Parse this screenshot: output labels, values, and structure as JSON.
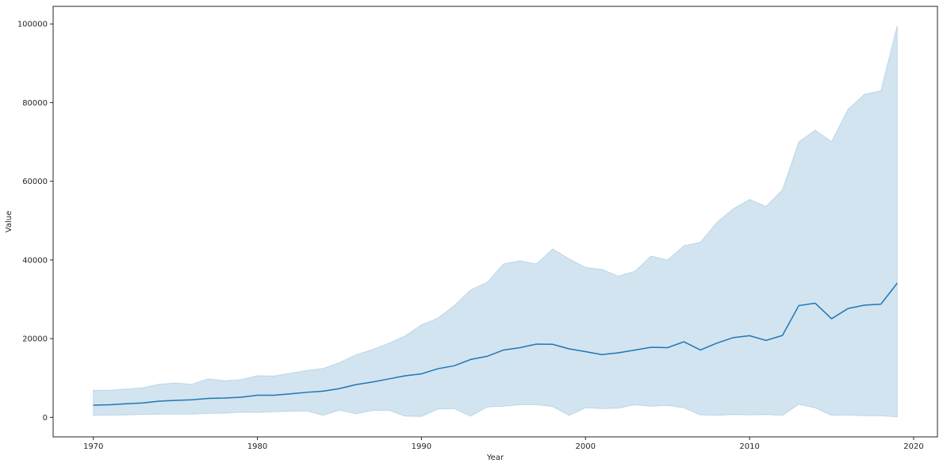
{
  "chart_data": {
    "type": "line",
    "xlabel": "Year",
    "ylabel": "Value",
    "xlim": [
      1967.55,
      2021.45
    ],
    "ylim": [
      -4975,
      104475
    ],
    "x_ticks": [
      1970,
      1980,
      1990,
      2000,
      2010,
      2020
    ],
    "y_ticks": [
      0,
      20000,
      40000,
      60000,
      80000,
      100000
    ],
    "grid": false,
    "colors": {
      "line": "#1f77b4",
      "band": "#1f77b4"
    },
    "x": [
      1970,
      1971,
      1972,
      1973,
      1974,
      1975,
      1976,
      1977,
      1978,
      1979,
      1980,
      1981,
      1982,
      1983,
      1984,
      1985,
      1986,
      1987,
      1988,
      1989,
      1990,
      1991,
      1992,
      1993,
      1994,
      1995,
      1996,
      1997,
      1998,
      1999,
      2000,
      2001,
      2002,
      2003,
      2004,
      2005,
      2006,
      2007,
      2008,
      2009,
      2010,
      2011,
      2012,
      2013,
      2014,
      2015,
      2016,
      2017,
      2018,
      2019
    ],
    "series": [
      {
        "values": [
          3100,
          3200,
          3450,
          3650,
          4100,
          4300,
          4450,
          4800,
          4900,
          5100,
          5600,
          5600,
          5950,
          6350,
          6650,
          7300,
          8300,
          8950,
          9750,
          10550,
          11050,
          12350,
          13100,
          14700,
          15500,
          17100,
          17700,
          18600,
          18550,
          17400,
          16700,
          15950,
          16400,
          17100,
          17800,
          17700,
          19200,
          17100,
          18850,
          20250,
          20750,
          19550,
          20800,
          28400,
          29000,
          25050,
          27650,
          28500,
          28750,
          34100
        ],
        "lower": [
          500,
          550,
          600,
          700,
          800,
          800,
          800,
          1000,
          1050,
          1300,
          1200,
          1400,
          1500,
          1600,
          500,
          1800,
          900,
          1700,
          1800,
          300,
          200,
          2100,
          2200,
          300,
          2600,
          2800,
          3200,
          3200,
          2700,
          500,
          2400,
          2200,
          2300,
          3200,
          2800,
          3000,
          2400,
          600,
          500,
          700,
          600,
          700,
          500,
          3300,
          2400,
          500,
          600,
          400,
          400,
          100
        ],
        "upper": [
          6900,
          6900,
          7200,
          7500,
          8400,
          8700,
          8400,
          9800,
          9300,
          9600,
          10600,
          10500,
          11200,
          11900,
          12400,
          13900,
          15900,
          17200,
          18800,
          20700,
          23500,
          25200,
          28400,
          32400,
          34300,
          39000,
          39800,
          39000,
          42800,
          40300,
          38100,
          37600,
          35900,
          37100,
          41000,
          40000,
          43600,
          44500,
          49500,
          53000,
          55400,
          53600,
          57800,
          70000,
          73000,
          70100,
          78300,
          82100,
          83000,
          99600
        ]
      }
    ]
  }
}
